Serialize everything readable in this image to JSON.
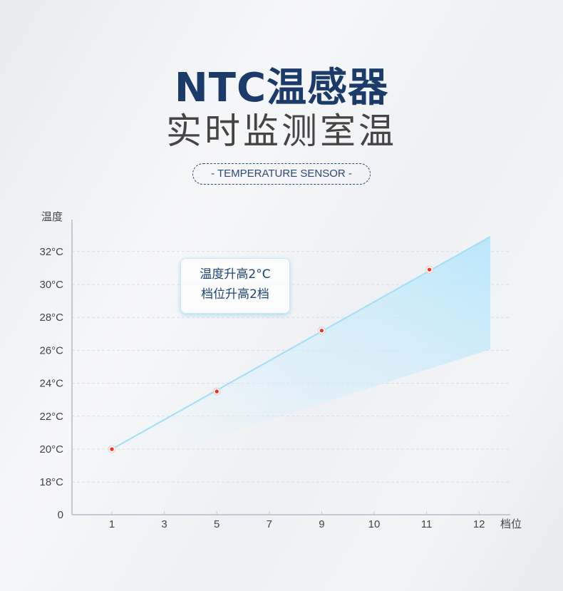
{
  "header": {
    "title": "NTC温感器",
    "subtitle": "实时监测室温",
    "tag": "- TEMPERATURE SENSOR -"
  },
  "annotation": {
    "line1": "温度升高2°C",
    "line2": "档位升高2档"
  },
  "chart_data": {
    "type": "area",
    "ylabel": "温度",
    "xlabel": "档位",
    "categories": [
      "1",
      "3",
      "5",
      "7",
      "9",
      "10",
      "11",
      "12"
    ],
    "y_ticks": [
      "0",
      "18°C",
      "20°C",
      "22°C",
      "24°C",
      "26°C",
      "28°C",
      "30°C",
      "32°C"
    ],
    "y_tick_values": [
      0,
      18,
      20,
      22,
      24,
      26,
      28,
      30,
      32
    ],
    "grid": true,
    "series": [
      {
        "points": [
          {
            "x": "1",
            "y": 20
          },
          {
            "x": "5",
            "y": 23.5
          },
          {
            "x": "9",
            "y": 27.2
          },
          {
            "x": "11",
            "y": 30.9
          }
        ],
        "end_value": 32.9
      }
    ],
    "colors": {
      "line": "#9fe0f7",
      "marker": "#ff2a1a",
      "fill": "#bfe9fa"
    }
  }
}
